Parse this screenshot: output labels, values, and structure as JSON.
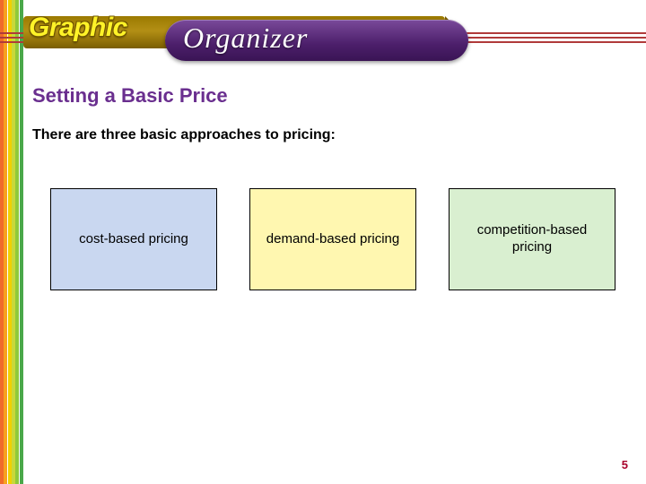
{
  "header": {
    "word_graphic": "Graphic",
    "word_organizer": "Organizer",
    "graphic_color": "#fff328",
    "organizer_color": "#ffffff",
    "banner_gradient_top": "#9b7a00",
    "banner_gradient_bottom": "#7a5d00",
    "pill_gradient_top": "#7a4a9a",
    "pill_gradient_bottom": "#3a1454",
    "red_line_color": "#b03a3a"
  },
  "left_stripes": {
    "colors": [
      "#f06b2a",
      "#f7a11f",
      "#f0d000",
      "#c8d83a",
      "#8fc93a",
      "#4aa84a"
    ],
    "stripe_width": 4,
    "gap": 0.3
  },
  "content": {
    "title": "Setting a Basic Price",
    "title_color": "#6a2f8f",
    "title_fontsize": 22,
    "subtitle": "There are three basic approaches to pricing:",
    "subtitle_color": "#000000",
    "subtitle_fontsize": 16
  },
  "boxes": {
    "width": 186,
    "height": 114,
    "border_color": "#000000",
    "font_size": 15,
    "items": [
      {
        "label": "cost-based pricing",
        "bg": "#c9d7f0"
      },
      {
        "label": "demand-based pricing",
        "bg": "#fff7b0"
      },
      {
        "label": "competition-based pricing",
        "bg": "#d9efd0"
      }
    ]
  },
  "page_number": "5",
  "page_number_color": "#a8002a"
}
